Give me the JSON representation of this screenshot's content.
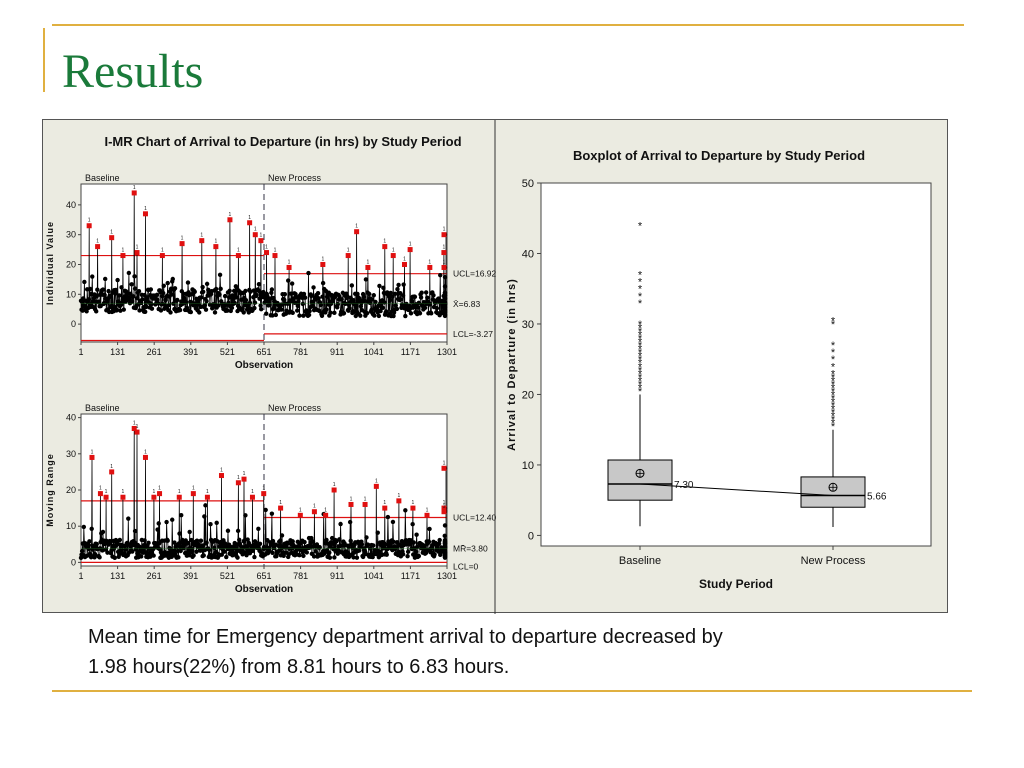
{
  "slide": {
    "title": "Results",
    "caption_line1": "Mean time for Emergency department arrival to departure decreased by",
    "caption_line2": "1.98 hours(22%) from 8.81 hours to 6.83 hours."
  },
  "chart_data": [
    {
      "type": "scatter",
      "title": "I-MR Chart of Arrival to Departure (in hrs) by Study Period",
      "xlabel": "Observation",
      "xticks": [
        1,
        131,
        261,
        391,
        521,
        651,
        781,
        911,
        1041,
        1171,
        1301
      ],
      "xlim": [
        1,
        1301
      ],
      "phase_labels": [
        "Baseline",
        "New Process"
      ],
      "phase_change_at": 651,
      "panels": [
        {
          "name": "individual",
          "ylabel": "Individual Value",
          "yticks": [
            0,
            10,
            20,
            30,
            40
          ],
          "ylim": [
            -6,
            47
          ],
          "limits": {
            "baseline": {
              "ucl": 23.0,
              "lcl": -5.5
            },
            "new": {
              "ucl": 16.92,
              "lcl": -3.27
            }
          },
          "labels": {
            "ucl": "UCL=16.92",
            "center": "X̄=6.83",
            "lcl": "LCL=-3.27"
          },
          "center": 6.83,
          "out_of_control_points": [
            {
              "x": 30,
              "y": 33
            },
            {
              "x": 60,
              "y": 26
            },
            {
              "x": 110,
              "y": 29
            },
            {
              "x": 150,
              "y": 23
            },
            {
              "x": 190,
              "y": 44
            },
            {
              "x": 200,
              "y": 24
            },
            {
              "x": 230,
              "y": 37
            },
            {
              "x": 290,
              "y": 23
            },
            {
              "x": 360,
              "y": 27
            },
            {
              "x": 430,
              "y": 28
            },
            {
              "x": 480,
              "y": 26
            },
            {
              "x": 530,
              "y": 35
            },
            {
              "x": 560,
              "y": 23
            },
            {
              "x": 600,
              "y": 34
            },
            {
              "x": 620,
              "y": 30
            },
            {
              "x": 640,
              "y": 28
            },
            {
              "x": 660,
              "y": 24
            },
            {
              "x": 690,
              "y": 23
            },
            {
              "x": 740,
              "y": 19
            },
            {
              "x": 860,
              "y": 20
            },
            {
              "x": 950,
              "y": 23
            },
            {
              "x": 980,
              "y": 31
            },
            {
              "x": 1020,
              "y": 19
            },
            {
              "x": 1080,
              "y": 26
            },
            {
              "x": 1110,
              "y": 23
            },
            {
              "x": 1150,
              "y": 20
            },
            {
              "x": 1170,
              "y": 25
            },
            {
              "x": 1240,
              "y": 19
            },
            {
              "x": 1290,
              "y": 24
            },
            {
              "x": 1340,
              "y": 30
            },
            {
              "x": 1360,
              "y": 19
            }
          ]
        },
        {
          "name": "moving-range",
          "ylabel": "Moving Range",
          "yticks": [
            0,
            10,
            20,
            30,
            40
          ],
          "ylim": [
            -1,
            41
          ],
          "limits": {
            "baseline": {
              "ucl": 17.0,
              "lcl": 0
            },
            "new": {
              "ucl": 12.4,
              "lcl": 0
            }
          },
          "labels": {
            "ucl": "UCL=12.40",
            "center": "MR̄=3.80",
            "lcl": "LCL=0"
          },
          "center": 3.8,
          "out_of_control_points": [
            {
              "x": 40,
              "y": 29
            },
            {
              "x": 70,
              "y": 19
            },
            {
              "x": 90,
              "y": 18
            },
            {
              "x": 110,
              "y": 25
            },
            {
              "x": 150,
              "y": 18
            },
            {
              "x": 190,
              "y": 37
            },
            {
              "x": 200,
              "y": 36
            },
            {
              "x": 230,
              "y": 29
            },
            {
              "x": 260,
              "y": 18
            },
            {
              "x": 280,
              "y": 19
            },
            {
              "x": 350,
              "y": 18
            },
            {
              "x": 400,
              "y": 19
            },
            {
              "x": 450,
              "y": 18
            },
            {
              "x": 500,
              "y": 24
            },
            {
              "x": 560,
              "y": 22
            },
            {
              "x": 580,
              "y": 23
            },
            {
              "x": 610,
              "y": 18
            },
            {
              "x": 650,
              "y": 19
            },
            {
              "x": 710,
              "y": 15
            },
            {
              "x": 780,
              "y": 13
            },
            {
              "x": 830,
              "y": 14
            },
            {
              "x": 870,
              "y": 13
            },
            {
              "x": 900,
              "y": 20
            },
            {
              "x": 960,
              "y": 16
            },
            {
              "x": 1010,
              "y": 16
            },
            {
              "x": 1050,
              "y": 21
            },
            {
              "x": 1080,
              "y": 15
            },
            {
              "x": 1130,
              "y": 17
            },
            {
              "x": 1180,
              "y": 15
            },
            {
              "x": 1230,
              "y": 13
            },
            {
              "x": 1300,
              "y": 26
            },
            {
              "x": 1330,
              "y": 15
            },
            {
              "x": 1360,
              "y": 14
            }
          ]
        }
      ]
    },
    {
      "type": "box",
      "title": "Boxplot of Arrival to Departure by Study Period",
      "xlabel": "Study Period",
      "ylabel": "Arrival to Departure (in hrs)",
      "yticks": [
        0,
        10,
        20,
        30,
        40,
        50
      ],
      "ylim": [
        -1.5,
        50
      ],
      "categories": [
        "Baseline",
        "New Process"
      ],
      "boxes": [
        {
          "category": "Baseline",
          "whisker_low": 1.3,
          "q1": 5.0,
          "median": 7.3,
          "q3": 10.7,
          "whisker_high": 20.0,
          "mean": 8.81,
          "median_label": "7.30",
          "outliers": [
            20.5,
            21,
            21.5,
            22,
            22.5,
            23,
            23.5,
            24,
            24.5,
            25,
            25.5,
            26,
            26.5,
            27,
            27.5,
            28,
            28.5,
            29,
            29.5,
            30,
            33,
            34,
            35,
            36,
            37,
            44
          ]
        },
        {
          "category": "New Process",
          "whisker_low": 1.2,
          "q1": 4.0,
          "median": 5.66,
          "q3": 8.3,
          "whisker_high": 15.0,
          "mean": 6.83,
          "median_label": "5.66",
          "outliers": [
            15.5,
            16,
            16.5,
            17,
            17.5,
            18,
            18.5,
            19,
            19.5,
            20,
            20.5,
            21,
            21.5,
            22,
            22.5,
            23,
            24,
            25,
            26,
            27,
            30,
            30.5
          ]
        }
      ]
    }
  ]
}
